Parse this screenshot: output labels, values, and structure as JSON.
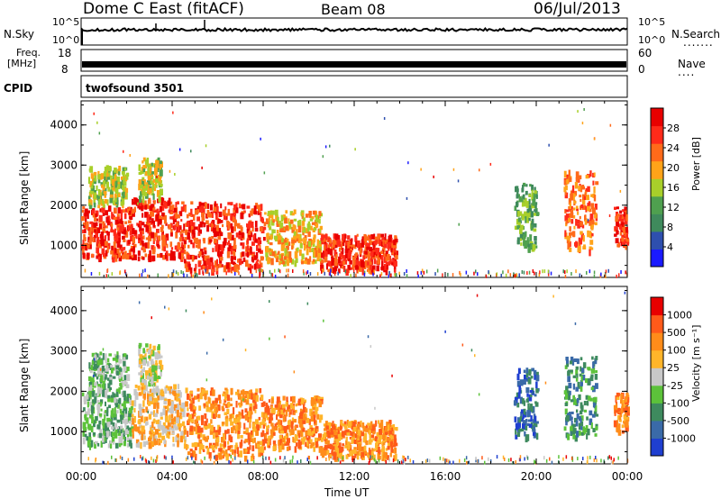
{
  "header": {
    "title": "Dome C East (fitACF)",
    "beam": "Beam 08",
    "date": "06/Jul/2013"
  },
  "noise_panel": {
    "left_label": "N.Sky",
    "right_label": "N.Search",
    "right_dots": ".......",
    "left_ticks": [
      "10^5",
      "10^0"
    ],
    "right_ticks": [
      "10^5",
      "10^0"
    ]
  },
  "freq_panel": {
    "left_label_line1": "Freq.",
    "left_label_line2": "[MHz]",
    "right_label": "Nave",
    "right_dots": "....",
    "left_ticks": [
      "18",
      "8"
    ],
    "right_ticks": [
      "60",
      "0"
    ]
  },
  "cpid_panel": {
    "label": "CPID",
    "value": "twofsound 3501"
  },
  "colors": {
    "power_scale": [
      "#1a1aff",
      "#2e4fae",
      "#3f8a5c",
      "#4fa04f",
      "#a8cf2a",
      "#ffa319",
      "#ff6a1a",
      "#ff2a1a",
      "#e80000"
    ],
    "velocity_scale": [
      "#1f3fd0",
      "#3a6aa8",
      "#3e8a5e",
      "#5cc23a",
      "#c8c8c8",
      "#ffb52a",
      "#ff8c1a",
      "#ff5a1a",
      "#e80000"
    ]
  },
  "chart_data": [
    {
      "type": "heatmap",
      "panel": "power",
      "ylabel": "Slant Range [km]",
      "y_ticks": [
        "1000",
        "2000",
        "3000",
        "4000"
      ],
      "ylim": [
        200,
        4600
      ],
      "xlim": [
        0,
        24
      ],
      "colorbar_label": "Power [dB]",
      "colorbar_ticks": [
        "4",
        "8",
        "12",
        "16",
        "20",
        "24",
        "28"
      ],
      "scatter_regions": [
        {
          "t0": 0.0,
          "t1": 2.2,
          "r0": 700,
          "r1": 2000,
          "level": 7
        },
        {
          "t0": 0.3,
          "t1": 2.0,
          "r0": 2000,
          "r1": 3000,
          "level": 4
        },
        {
          "t0": 2.2,
          "t1": 4.5,
          "r0": 700,
          "r1": 2200,
          "level": 7
        },
        {
          "t0": 2.5,
          "t1": 3.5,
          "r0": 2200,
          "r1": 3200,
          "level": 4
        },
        {
          "t0": 4.5,
          "t1": 8.0,
          "r0": 400,
          "r1": 2100,
          "level": 7
        },
        {
          "t0": 8.0,
          "t1": 10.5,
          "r0": 600,
          "r1": 1900,
          "level": 5
        },
        {
          "t0": 10.5,
          "t1": 13.8,
          "r0": 400,
          "r1": 1300,
          "level": 7
        },
        {
          "t0": 19.0,
          "t1": 20.0,
          "r0": 900,
          "r1": 2600,
          "level": 3
        },
        {
          "t0": 21.2,
          "t1": 22.6,
          "r0": 900,
          "r1": 2900,
          "level": 6
        },
        {
          "t0": 23.4,
          "t1": 24.0,
          "r0": 1000,
          "r1": 2000,
          "level": 7
        }
      ]
    },
    {
      "type": "heatmap",
      "panel": "velocity",
      "ylabel": "Slant Range [km]",
      "y_ticks": [
        "1000",
        "2000",
        "3000",
        "4000"
      ],
      "ylim": [
        200,
        4600
      ],
      "xlim": [
        0,
        24
      ],
      "x_ticks": [
        "00:00",
        "04:00",
        "08:00",
        "12:00",
        "16:00",
        "20:00",
        "00:00"
      ],
      "xlabel": "Time UT",
      "colorbar_label": "Velocity [m s⁻¹]",
      "colorbar_ticks": [
        "1000",
        "500",
        "100",
        "25",
        "-25",
        "-100",
        "-500",
        "-1000"
      ],
      "scatter_regions": [
        {
          "t0": 0.0,
          "t1": 2.2,
          "r0": 700,
          "r1": 2000,
          "level": 3
        },
        {
          "t0": 0.3,
          "t1": 2.0,
          "r0": 2000,
          "r1": 3000,
          "level": 3
        },
        {
          "t0": 2.2,
          "t1": 4.5,
          "r0": 700,
          "r1": 2200,
          "level": 5
        },
        {
          "t0": 2.5,
          "t1": 3.5,
          "r0": 2200,
          "r1": 3200,
          "level": 4
        },
        {
          "t0": 4.5,
          "t1": 8.0,
          "r0": 400,
          "r1": 2100,
          "level": 6
        },
        {
          "t0": 8.0,
          "t1": 10.5,
          "r0": 600,
          "r1": 1900,
          "level": 6
        },
        {
          "t0": 10.5,
          "t1": 13.8,
          "r0": 400,
          "r1": 1300,
          "level": 6
        },
        {
          "t0": 19.0,
          "t1": 20.0,
          "r0": 900,
          "r1": 2600,
          "level": 1
        },
        {
          "t0": 21.2,
          "t1": 22.6,
          "r0": 900,
          "r1": 2900,
          "level": 2
        },
        {
          "t0": 23.4,
          "t1": 24.0,
          "r0": 1000,
          "r1": 2000,
          "level": 6
        }
      ]
    }
  ]
}
